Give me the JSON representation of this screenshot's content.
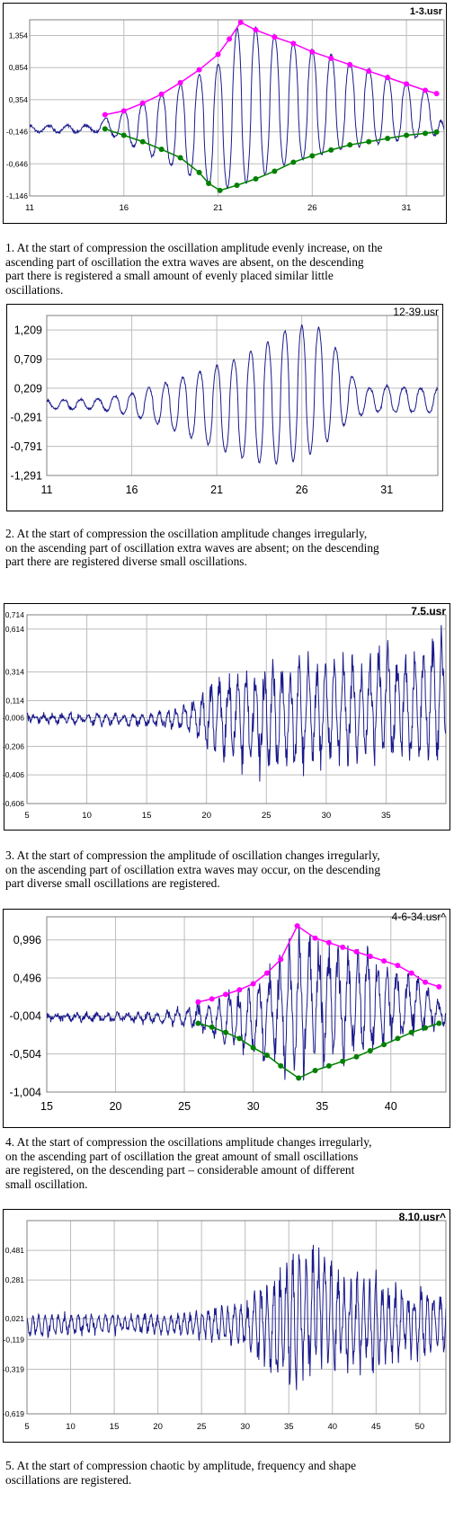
{
  "colors": {
    "signal": "#1a1a8c",
    "upper_envelope": "#ff00ff",
    "lower_envelope": "#008000",
    "grid": "#bdbdbd",
    "frame": "#808080"
  },
  "chart_data": [
    {
      "type": "line",
      "title": "1-3.usr",
      "xticks": [
        "11",
        "16",
        "21",
        "26",
        "31"
      ],
      "yticks": [
        "1,354",
        "0,854",
        "0,354",
        "-0,146",
        "-0,646",
        "-1,146"
      ],
      "xlim": [
        11,
        33
      ],
      "ylim": [
        -1.146,
        1.6
      ],
      "series": [
        {
          "kind": "signal",
          "style": "regular",
          "values": [
            [
              11,
              -0.05
            ],
            [
              14.5,
              -0.05
            ],
            [
              15,
              0.05
            ],
            [
              17,
              0.3
            ],
            [
              21,
              0.9
            ],
            [
              22.2,
              1.56
            ],
            [
              25,
              1.25
            ],
            [
              28,
              0.95
            ],
            [
              32.5,
              0.45
            ],
            [
              33,
              -0.1
            ]
          ],
          "lower": [
            [
              11,
              -0.15
            ],
            [
              14.5,
              -0.15
            ],
            [
              15,
              -0.15
            ],
            [
              17,
              -0.45
            ],
            [
              21,
              -1.05
            ],
            [
              22.2,
              -0.98
            ],
            [
              25,
              -0.6
            ],
            [
              28,
              -0.4
            ],
            [
              32.5,
              -0.2
            ],
            [
              33,
              -0.2
            ]
          ]
        },
        {
          "kind": "upper_envelope",
          "values": [
            [
              15,
              0.12
            ],
            [
              16,
              0.18
            ],
            [
              17,
              0.3
            ],
            [
              18,
              0.44
            ],
            [
              19,
              0.62
            ],
            [
              20,
              0.82
            ],
            [
              21,
              1.06
            ],
            [
              21.6,
              1.3
            ],
            [
              22.2,
              1.56
            ],
            [
              23,
              1.44
            ],
            [
              24,
              1.33
            ],
            [
              25,
              1.23
            ],
            [
              26,
              1.1
            ],
            [
              27,
              1.0
            ],
            [
              28,
              0.9
            ],
            [
              29,
              0.8
            ],
            [
              30,
              0.7
            ],
            [
              31,
              0.6
            ],
            [
              32,
              0.5
            ],
            [
              32.6,
              0.45
            ]
          ]
        },
        {
          "kind": "lower_envelope",
          "values": [
            [
              15,
              -0.1
            ],
            [
              16,
              -0.2
            ],
            [
              17,
              -0.3
            ],
            [
              18,
              -0.42
            ],
            [
              19,
              -0.55
            ],
            [
              20,
              -0.78
            ],
            [
              20.5,
              -0.95
            ],
            [
              21.1,
              -1.06
            ],
            [
              22,
              -0.98
            ],
            [
              23,
              -0.88
            ],
            [
              24,
              -0.76
            ],
            [
              25,
              -0.62
            ],
            [
              26,
              -0.52
            ],
            [
              27,
              -0.43
            ],
            [
              28,
              -0.35
            ],
            [
              29,
              -0.3
            ],
            [
              30,
              -0.25
            ],
            [
              31,
              -0.2
            ],
            [
              32,
              -0.17
            ],
            [
              32.6,
              -0.15
            ]
          ]
        }
      ]
    },
    {
      "type": "line",
      "title": "12-39.usr",
      "xticks": [
        "11",
        "16",
        "21",
        "26",
        "31"
      ],
      "yticks": [
        "1,209",
        "0,709",
        "0,209",
        "-0,291",
        "-0,791",
        "-1,291"
      ],
      "xlim": [
        11,
        34
      ],
      "ylim": [
        -1.291,
        1.459
      ],
      "series": [
        {
          "kind": "signal",
          "style": "regular",
          "values": [
            [
              11,
              0.0
            ],
            [
              14,
              0.02
            ],
            [
              16,
              0.12
            ],
            [
              18,
              0.3
            ],
            [
              20,
              0.5
            ],
            [
              22,
              0.7
            ],
            [
              24,
              1.0
            ],
            [
              25.5,
              1.3
            ],
            [
              27,
              1.25
            ],
            [
              28,
              0.9
            ],
            [
              29,
              0.4
            ],
            [
              30,
              0.2
            ],
            [
              31,
              0.25
            ],
            [
              33,
              0.2
            ]
          ],
          "lower": [
            [
              11,
              -0.15
            ],
            [
              14,
              -0.15
            ],
            [
              16,
              -0.25
            ],
            [
              18,
              -0.45
            ],
            [
              20,
              -0.7
            ],
            [
              22,
              -0.95
            ],
            [
              24,
              -1.1
            ],
            [
              25.5,
              -1.05
            ],
            [
              27,
              -0.85
            ],
            [
              28,
              -0.55
            ],
            [
              29,
              -0.3
            ],
            [
              30,
              -0.2
            ],
            [
              31,
              -0.2
            ],
            [
              33,
              -0.2
            ]
          ]
        }
      ]
    },
    {
      "type": "line",
      "title": "7.5.usr",
      "xticks": [
        "5",
        "10",
        "15",
        "20",
        "25",
        "30",
        "35"
      ],
      "yticks": [
        "0,714",
        "0,614",
        "0,314",
        "0,114",
        "-0,006",
        "-0,206",
        "-0,406",
        "-0,606"
      ],
      "xlim": [
        5,
        40
      ],
      "ylim": [
        -0.606,
        0.714
      ],
      "series": [
        {
          "kind": "signal",
          "style": "chaotic",
          "values": [
            [
              5,
              0.02
            ],
            [
              15,
              0.02
            ],
            [
              18,
              0.08
            ],
            [
              20,
              0.25
            ],
            [
              22,
              0.35
            ],
            [
              25,
              0.4
            ],
            [
              28,
              0.38
            ],
            [
              32,
              0.4
            ],
            [
              35,
              0.45
            ],
            [
              38,
              0.5
            ],
            [
              39.5,
              0.6
            ]
          ],
          "lower": [
            [
              5,
              -0.04
            ],
            [
              15,
              -0.06
            ],
            [
              18,
              -0.1
            ],
            [
              20,
              -0.25
            ],
            [
              22,
              -0.35
            ],
            [
              25,
              -0.42
            ],
            [
              28,
              -0.36
            ],
            [
              32,
              -0.3
            ],
            [
              35,
              -0.3
            ],
            [
              38,
              -0.32
            ],
            [
              39.5,
              -0.3
            ]
          ]
        }
      ]
    },
    {
      "type": "line",
      "title": "4-6-34.usr^",
      "xticks": [
        "15",
        "20",
        "25",
        "30",
        "35",
        "40"
      ],
      "yticks": [
        "0,996",
        "0,496",
        "-0,004",
        "-0,504",
        "-1,004"
      ],
      "xlim": [
        15,
        44
      ],
      "ylim": [
        -1.004,
        1.3
      ],
      "series": [
        {
          "kind": "signal",
          "style": "chaotic",
          "values": [
            [
              15,
              0.02
            ],
            [
              22,
              0.03
            ],
            [
              25,
              0.1
            ],
            [
              27,
              0.2
            ],
            [
              30,
              0.4
            ],
            [
              33.3,
              1.2
            ],
            [
              36,
              0.95
            ],
            [
              39,
              0.8
            ],
            [
              42,
              0.5
            ],
            [
              43.5,
              0.2
            ]
          ],
          "lower": [
            [
              15,
              -0.05
            ],
            [
              22,
              -0.08
            ],
            [
              25,
              -0.15
            ],
            [
              27,
              -0.3
            ],
            [
              30,
              -0.55
            ],
            [
              33.3,
              -0.8
            ],
            [
              36,
              -0.62
            ],
            [
              39,
              -0.48
            ],
            [
              42,
              -0.22
            ],
            [
              43.5,
              -0.15
            ]
          ]
        },
        {
          "kind": "upper_envelope",
          "values": [
            [
              26,
              0.18
            ],
            [
              27,
              0.22
            ],
            [
              28,
              0.28
            ],
            [
              29,
              0.34
            ],
            [
              30,
              0.42
            ],
            [
              31,
              0.56
            ],
            [
              32,
              0.74
            ],
            [
              33.2,
              1.18
            ],
            [
              34.5,
              1.02
            ],
            [
              35.5,
              0.96
            ],
            [
              36.5,
              0.9
            ],
            [
              37.5,
              0.84
            ],
            [
              38.5,
              0.78
            ],
            [
              39.5,
              0.72
            ],
            [
              40.5,
              0.66
            ],
            [
              41.5,
              0.56
            ],
            [
              42.5,
              0.44
            ],
            [
              43.5,
              0.38
            ]
          ]
        },
        {
          "kind": "lower_envelope",
          "values": [
            [
              26,
              -0.1
            ],
            [
              27,
              -0.15
            ],
            [
              28,
              -0.22
            ],
            [
              29,
              -0.3
            ],
            [
              30,
              -0.42
            ],
            [
              31,
              -0.52
            ],
            [
              32,
              -0.66
            ],
            [
              33.3,
              -0.82
            ],
            [
              34.5,
              -0.72
            ],
            [
              35.5,
              -0.66
            ],
            [
              36.5,
              -0.6
            ],
            [
              37.5,
              -0.54
            ],
            [
              38.5,
              -0.46
            ],
            [
              39.5,
              -0.38
            ],
            [
              40.5,
              -0.3
            ],
            [
              41.5,
              -0.22
            ],
            [
              42.5,
              -0.16
            ],
            [
              43.5,
              -0.1
            ]
          ]
        }
      ]
    },
    {
      "type": "line",
      "title": "8.10.usr^",
      "xticks": [
        "5",
        "10",
        "15",
        "20",
        "25",
        "30",
        "35",
        "40",
        "45",
        "50"
      ],
      "yticks": [
        "0,481",
        "0,281",
        "0,021",
        "-0,119",
        "-0,319",
        "-0,619"
      ],
      "xlim": [
        5,
        53
      ],
      "ylim": [
        -0.619,
        0.681
      ],
      "series": [
        {
          "kind": "signal",
          "style": "chaotic",
          "values": [
            [
              5,
              0.05
            ],
            [
              10,
              0.06
            ],
            [
              15,
              0.05
            ],
            [
              20,
              0.05
            ],
            [
              25,
              0.07
            ],
            [
              30,
              0.15
            ],
            [
              33,
              0.3
            ],
            [
              36,
              0.5
            ],
            [
              38,
              0.55
            ],
            [
              41,
              0.35
            ],
            [
              45,
              0.28
            ],
            [
              49,
              0.22
            ],
            [
              53,
              0.2
            ]
          ],
          "lower": [
            [
              5,
              -0.1
            ],
            [
              10,
              -0.08
            ],
            [
              15,
              -0.07
            ],
            [
              20,
              -0.08
            ],
            [
              25,
              -0.1
            ],
            [
              30,
              -0.2
            ],
            [
              33,
              -0.35
            ],
            [
              36,
              -0.45
            ],
            [
              38,
              -0.35
            ],
            [
              41,
              -0.3
            ],
            [
              45,
              -0.3
            ],
            [
              49,
              -0.25
            ],
            [
              53,
              -0.2
            ]
          ]
        }
      ]
    }
  ],
  "captions": [
    "1. At the start of compression the oscillation amplitude evenly increase, on the\n ascending part of oscillation the extra waves are absent, on the descending\npart  there is registered a small amount of evenly placed similar little\noscillations.",
    "2. At the start of compression the oscillation amplitude changes irregularly,\n on the ascending part of oscillation extra waves are absent; on the descending\npart there are registered diverse small oscillations.",
    "3. At the start of compression the amplitude of oscillation changes irregularly,\non the ascending part of oscillation extra waves may occur, on the descending\npart diverse small oscillations are registered.",
    "4. At the start of compression the oscillations amplitude changes irregularly,\non the ascending part of oscillation the great amount of small oscillations\nare registered, on the descending part – considerable amount of different\nsmall oscillation.",
    "5. At the start of compression chaotic by amplitude, frequency and shape\noscillations are registered."
  ]
}
